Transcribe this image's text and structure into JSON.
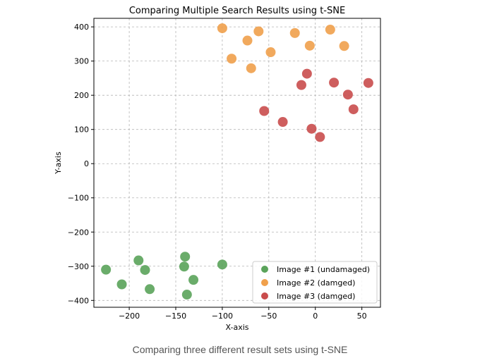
{
  "caption": "Comparing three different result sets using t-SNE",
  "chart_data": {
    "type": "scatter",
    "title": "Comparing Multiple Search Results using t-SNE",
    "xlabel": "X-axis",
    "ylabel": "Y-axis",
    "xlim": [
      -238,
      70
    ],
    "ylim": [
      -420,
      425
    ],
    "xticks": [
      -200,
      -150,
      -100,
      -50,
      0,
      50
    ],
    "xtick_labels": [
      "−200",
      "−150",
      "−100",
      "−50",
      "0",
      "50"
    ],
    "yticks": [
      -400,
      -300,
      -200,
      -100,
      0,
      100,
      200,
      300,
      400
    ],
    "ytick_labels": [
      "−400",
      "−300",
      "−200",
      "−100",
      "0",
      "100",
      "200",
      "300",
      "400"
    ],
    "grid": true,
    "legend_position": "lower-right",
    "series": [
      {
        "name": "Image #1 (undamaged)",
        "color": "#5aa35a",
        "points": [
          [
            -225,
            -310
          ],
          [
            -208,
            -353
          ],
          [
            -190,
            -283
          ],
          [
            -183,
            -311
          ],
          [
            -178,
            -367
          ],
          [
            -140,
            -272
          ],
          [
            -141,
            -301
          ],
          [
            -138,
            -383
          ],
          [
            -131,
            -340
          ],
          [
            -100,
            -295
          ]
        ]
      },
      {
        "name": "Image #2 (damged)",
        "color": "#f0a04b",
        "points": [
          [
            -100,
            396
          ],
          [
            -90,
            307
          ],
          [
            -73,
            360
          ],
          [
            -69,
            279
          ],
          [
            -61,
            387
          ],
          [
            -48,
            326
          ],
          [
            -22,
            382
          ],
          [
            -6,
            345
          ],
          [
            16,
            392
          ],
          [
            31,
            344
          ]
        ]
      },
      {
        "name": "Image #3 (damged)",
        "color": "#c94c4c",
        "points": [
          [
            -55,
            154
          ],
          [
            -35,
            122
          ],
          [
            -15,
            230
          ],
          [
            -9,
            263
          ],
          [
            -4,
            102
          ],
          [
            5,
            78
          ],
          [
            20,
            237
          ],
          [
            35,
            202
          ],
          [
            41,
            159
          ],
          [
            57,
            236
          ]
        ]
      }
    ]
  }
}
